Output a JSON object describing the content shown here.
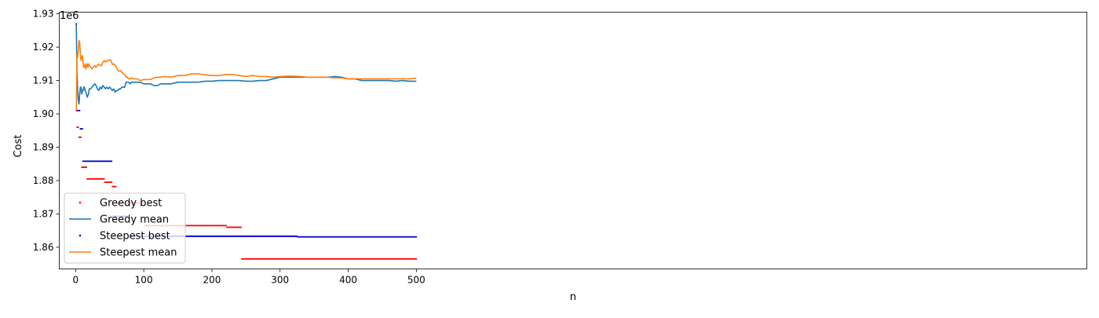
{
  "chart_data": {
    "type": "line",
    "title": "",
    "xlabel": "n",
    "ylabel": "Cost",
    "offset_text": "1e6",
    "xlim": [
      -24,
      1484
    ],
    "ylim": [
      1.8535,
      1.9305
    ],
    "display_scale": 1000000,
    "xticks": [
      0,
      100,
      200,
      300,
      400,
      500
    ],
    "xtick_labels": [
      "0",
      "100",
      "200",
      "300",
      "400",
      "500"
    ],
    "yticks": [
      1.86,
      1.87,
      1.88,
      1.89,
      1.9,
      1.91,
      1.92,
      1.93
    ],
    "ytick_labels": [
      "1.86",
      "1.87",
      "1.88",
      "1.89",
      "1.90",
      "1.91",
      "1.92",
      "1.93"
    ],
    "grid": false,
    "legend_position": "lower-left",
    "series": [
      {
        "name": "Greedy best",
        "kind": "scatter",
        "color": "#ff0000",
        "steps": [
          {
            "from": 1,
            "to": 1,
            "y": 1.901
          },
          {
            "from": 2,
            "to": 4,
            "y": 1.896
          },
          {
            "from": 5,
            "to": 8,
            "y": 1.893
          },
          {
            "from": 9,
            "to": 16,
            "y": 1.884
          },
          {
            "from": 17,
            "to": 42,
            "y": 1.8805
          },
          {
            "from": 43,
            "to": 53,
            "y": 1.8795
          },
          {
            "from": 54,
            "to": 59,
            "y": 1.8782
          },
          {
            "from": 60,
            "to": 101,
            "y": 1.8733
          },
          {
            "from": 102,
            "to": 221,
            "y": 1.8665
          },
          {
            "from": 222,
            "to": 243,
            "y": 1.866
          },
          {
            "from": 244,
            "to": 500,
            "y": 1.8565
          }
        ]
      },
      {
        "name": "Greedy mean",
        "kind": "line",
        "color": "#1f77b4",
        "points": [
          [
            1,
            1.927
          ],
          [
            2,
            1.912
          ],
          [
            3,
            1.907
          ],
          [
            4,
            1.904
          ],
          [
            5,
            1.903
          ],
          [
            6,
            1.906
          ],
          [
            7,
            1.908
          ],
          [
            8,
            1.908
          ],
          [
            9,
            1.906
          ],
          [
            10,
            1.907
          ],
          [
            11,
            1.907
          ],
          [
            12,
            1.908
          ],
          [
            13,
            1.908
          ],
          [
            14,
            1.907
          ],
          [
            15,
            1.9065
          ],
          [
            16,
            1.906
          ],
          [
            17,
            1.905
          ],
          [
            18,
            1.9055
          ],
          [
            19,
            1.906
          ],
          [
            20,
            1.9075
          ],
          [
            22,
            1.9075
          ],
          [
            24,
            1.908
          ],
          [
            26,
            1.9085
          ],
          [
            28,
            1.909
          ],
          [
            30,
            1.9085
          ],
          [
            32,
            1.9075
          ],
          [
            34,
            1.907
          ],
          [
            36,
            1.908
          ],
          [
            38,
            1.9075
          ],
          [
            40,
            1.9085
          ],
          [
            42,
            1.908
          ],
          [
            44,
            1.9075
          ],
          [
            46,
            1.908
          ],
          [
            48,
            1.9075
          ],
          [
            50,
            1.908
          ],
          [
            52,
            1.9075
          ],
          [
            54,
            1.907
          ],
          [
            56,
            1.9075
          ],
          [
            58,
            1.9065
          ],
          [
            60,
            1.907
          ],
          [
            62,
            1.907
          ],
          [
            64,
            1.9075
          ],
          [
            66,
            1.9075
          ],
          [
            68,
            1.908
          ],
          [
            70,
            1.908
          ],
          [
            72,
            1.908
          ],
          [
            74,
            1.9095
          ],
          [
            76,
            1.9095
          ],
          [
            78,
            1.9095
          ],
          [
            80,
            1.909
          ],
          [
            82,
            1.9095
          ],
          [
            85,
            1.9095
          ],
          [
            90,
            1.9095
          ],
          [
            95,
            1.9095
          ],
          [
            100,
            1.909
          ],
          [
            105,
            1.909
          ],
          [
            110,
            1.909
          ],
          [
            115,
            1.9085
          ],
          [
            120,
            1.9085
          ],
          [
            125,
            1.909
          ],
          [
            130,
            1.909
          ],
          [
            140,
            1.909
          ],
          [
            150,
            1.9095
          ],
          [
            160,
            1.9095
          ],
          [
            170,
            1.9095
          ],
          [
            180,
            1.9095
          ],
          [
            190,
            1.9098
          ],
          [
            200,
            1.9098
          ],
          [
            210,
            1.91
          ],
          [
            220,
            1.91
          ],
          [
            230,
            1.91
          ],
          [
            240,
            1.91
          ],
          [
            250,
            1.9098
          ],
          [
            260,
            1.9098
          ],
          [
            270,
            1.91
          ],
          [
            280,
            1.91
          ],
          [
            290,
            1.9105
          ],
          [
            300,
            1.911
          ],
          [
            310,
            1.911
          ],
          [
            320,
            1.911
          ],
          [
            330,
            1.911
          ],
          [
            340,
            1.911
          ],
          [
            350,
            1.911
          ],
          [
            360,
            1.911
          ],
          [
            370,
            1.911
          ],
          [
            380,
            1.9112
          ],
          [
            390,
            1.911
          ],
          [
            400,
            1.9105
          ],
          [
            410,
            1.9105
          ],
          [
            420,
            1.91
          ],
          [
            430,
            1.91
          ],
          [
            440,
            1.91
          ],
          [
            450,
            1.91
          ],
          [
            460,
            1.91
          ],
          [
            470,
            1.9098
          ],
          [
            480,
            1.91
          ],
          [
            490,
            1.9098
          ],
          [
            500,
            1.9098
          ]
        ]
      },
      {
        "name": "Steepest best",
        "kind": "scatter",
        "color": "#0000cc",
        "steps": [
          {
            "from": 1,
            "to": 1,
            "y": 1.927
          },
          {
            "from": 2,
            "to": 6,
            "y": 1.901
          },
          {
            "from": 7,
            "to": 10,
            "y": 1.8955
          },
          {
            "from": 11,
            "to": 53,
            "y": 1.8858
          },
          {
            "from": 54,
            "to": 76,
            "y": 1.8693
          },
          {
            "from": 77,
            "to": 325,
            "y": 1.8633
          },
          {
            "from": 326,
            "to": 500,
            "y": 1.8631
          }
        ]
      },
      {
        "name": "Steepest mean",
        "kind": "line",
        "color": "#ff7f0e",
        "points": [
          [
            1,
            1.901
          ],
          [
            2,
            1.918
          ],
          [
            3,
            1.917
          ],
          [
            4,
            1.919
          ],
          [
            5,
            1.922
          ],
          [
            6,
            1.9215
          ],
          [
            7,
            1.918
          ],
          [
            8,
            1.916
          ],
          [
            9,
            1.917
          ],
          [
            10,
            1.9175
          ],
          [
            11,
            1.915
          ],
          [
            12,
            1.914
          ],
          [
            13,
            1.914
          ],
          [
            14,
            1.915
          ],
          [
            15,
            1.9135
          ],
          [
            16,
            1.9145
          ],
          [
            17,
            1.915
          ],
          [
            18,
            1.914
          ],
          [
            19,
            1.915
          ],
          [
            20,
            1.9145
          ],
          [
            22,
            1.914
          ],
          [
            24,
            1.9135
          ],
          [
            26,
            1.914
          ],
          [
            28,
            1.9145
          ],
          [
            30,
            1.914
          ],
          [
            32,
            1.9145
          ],
          [
            34,
            1.915
          ],
          [
            36,
            1.9145
          ],
          [
            38,
            1.9145
          ],
          [
            40,
            1.9155
          ],
          [
            42,
            1.916
          ],
          [
            44,
            1.9155
          ],
          [
            46,
            1.916
          ],
          [
            48,
            1.916
          ],
          [
            50,
            1.9162
          ],
          [
            52,
            1.916
          ],
          [
            54,
            1.9148
          ],
          [
            56,
            1.915
          ],
          [
            58,
            1.9145
          ],
          [
            60,
            1.914
          ],
          [
            62,
            1.913
          ],
          [
            64,
            1.9128
          ],
          [
            66,
            1.913
          ],
          [
            68,
            1.9125
          ],
          [
            70,
            1.912
          ],
          [
            72,
            1.9118
          ],
          [
            74,
            1.911
          ],
          [
            76,
            1.911
          ],
          [
            78,
            1.9105
          ],
          [
            80,
            1.9105
          ],
          [
            82,
            1.9108
          ],
          [
            85,
            1.9105
          ],
          [
            90,
            1.9105
          ],
          [
            95,
            1.91
          ],
          [
            100,
            1.9103
          ],
          [
            105,
            1.9103
          ],
          [
            110,
            1.9103
          ],
          [
            115,
            1.9108
          ],
          [
            120,
            1.911
          ],
          [
            125,
            1.911
          ],
          [
            130,
            1.9112
          ],
          [
            140,
            1.911
          ],
          [
            150,
            1.9115
          ],
          [
            160,
            1.9115
          ],
          [
            170,
            1.912
          ],
          [
            180,
            1.912
          ],
          [
            190,
            1.9117
          ],
          [
            200,
            1.9115
          ],
          [
            210,
            1.9115
          ],
          [
            220,
            1.9118
          ],
          [
            230,
            1.9118
          ],
          [
            240,
            1.9115
          ],
          [
            250,
            1.9112
          ],
          [
            260,
            1.9115
          ],
          [
            270,
            1.9112
          ],
          [
            280,
            1.9112
          ],
          [
            290,
            1.911
          ],
          [
            300,
            1.9112
          ],
          [
            310,
            1.9113
          ],
          [
            320,
            1.9113
          ],
          [
            330,
            1.9112
          ],
          [
            340,
            1.911
          ],
          [
            350,
            1.911
          ],
          [
            360,
            1.911
          ],
          [
            370,
            1.911
          ],
          [
            380,
            1.9108
          ],
          [
            390,
            1.9108
          ],
          [
            400,
            1.9105
          ],
          [
            410,
            1.9105
          ],
          [
            420,
            1.9105
          ],
          [
            430,
            1.9105
          ],
          [
            440,
            1.9105
          ],
          [
            450,
            1.9105
          ],
          [
            460,
            1.9105
          ],
          [
            470,
            1.9105
          ],
          [
            480,
            1.9105
          ],
          [
            490,
            1.9105
          ],
          [
            500,
            1.9107
          ]
        ]
      }
    ]
  }
}
